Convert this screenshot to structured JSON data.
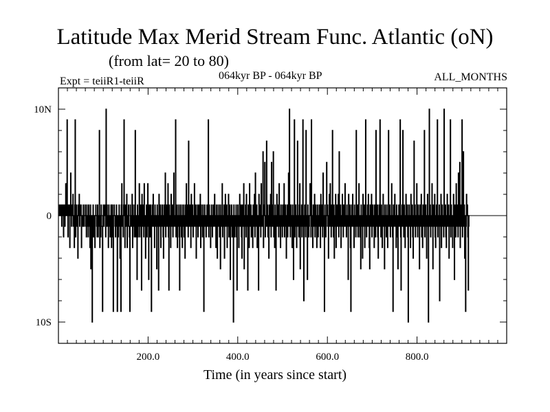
{
  "chart_data": {
    "type": "line",
    "title": "Latitude Max Merid Stream Func. Atlantic (oN)",
    "subtitle": "(from lat= 20 to 80)",
    "experiment": "Expt = teiiR1-teiiR",
    "period": "064kyr BP - 064kyr BP",
    "months": "ALL_MONTHS",
    "xlabel": "Time (in years since start)",
    "ylabel": "",
    "xlim": [
      0,
      1000
    ],
    "ylim": [
      -12,
      12
    ],
    "x_ticks": [
      200,
      400,
      600,
      800
    ],
    "x_tick_labels": [
      "200.0",
      "400.0",
      "600.0",
      "800.0"
    ],
    "y_ticks": [
      10,
      0,
      -10
    ],
    "y_tick_labels": [
      "10N",
      "0",
      "10S"
    ],
    "grid": false,
    "series": [
      {
        "x_start": 1,
        "x_step": 1,
        "values": [
          1,
          0,
          1,
          0,
          1,
          0,
          -1,
          1,
          0,
          1,
          -2,
          1,
          0,
          -1,
          1,
          3,
          0,
          1,
          9,
          0,
          -2,
          1,
          0,
          1,
          -3,
          1,
          4,
          0,
          -1,
          1,
          0,
          2,
          -1,
          0,
          -3,
          1,
          9,
          -2,
          0,
          1,
          -1,
          0,
          -4,
          1,
          0,
          2,
          -1,
          1,
          0,
          1,
          -3,
          -1,
          0,
          -1,
          1,
          0,
          -1,
          0,
          1,
          0,
          -1,
          -2,
          1,
          0,
          -1,
          -2,
          1,
          0,
          -1,
          -3,
          1,
          -5,
          -2,
          0,
          -10,
          -1,
          1,
          -2,
          0,
          -1,
          -3,
          0,
          1,
          0,
          -1,
          -2,
          1,
          -2,
          0,
          -1,
          8,
          -3,
          0,
          -2,
          1,
          -1,
          -1,
          -9,
          0,
          1,
          -1,
          0,
          1,
          0,
          -2,
          10,
          -1,
          1,
          -1,
          0,
          -3,
          1,
          0,
          -1,
          -2,
          0,
          1,
          -3,
          0,
          1,
          -2,
          -9,
          0,
          1,
          0,
          -1,
          -2,
          0,
          1,
          -1,
          -9,
          0,
          -2,
          -1,
          1,
          -1,
          -4,
          0,
          -9,
          1,
          3,
          -1,
          0,
          -2,
          1,
          9,
          0,
          -3,
          1,
          -1,
          0,
          2,
          -3,
          -1,
          0,
          1,
          -1,
          -2,
          -9,
          1,
          0,
          -1,
          0,
          2,
          -3,
          1,
          -1,
          0,
          -2,
          1,
          8,
          -2,
          0,
          -1,
          -6,
          1,
          -2,
          0,
          -1,
          3,
          -2,
          0,
          1,
          -1,
          -7,
          2,
          0,
          -1,
          1,
          -2,
          3,
          0,
          -1,
          -4,
          0,
          1,
          -2,
          0,
          3,
          -1,
          -6,
          1,
          0,
          -2,
          1,
          -1,
          -9,
          0,
          1,
          -1,
          2,
          0,
          -1,
          -3,
          1,
          0,
          -1,
          0,
          -5,
          1,
          -1,
          0,
          -7,
          2,
          -1,
          0,
          1,
          -3,
          0,
          -1,
          1,
          0,
          -2,
          -4,
          1,
          0,
          -1,
          4,
          -2,
          0,
          1,
          -1,
          0,
          3,
          -2,
          -7,
          1,
          -1,
          0,
          -3,
          2,
          0,
          -1,
          1,
          -2,
          0,
          4,
          -1,
          0,
          -1,
          9,
          -2,
          1,
          0,
          -3,
          -1,
          1,
          0,
          -2,
          -7,
          1,
          0,
          -1,
          -2,
          1,
          -3,
          0,
          -1,
          1,
          -2,
          0,
          -4,
          1,
          -1,
          3,
          0,
          -1,
          1,
          -2,
          7,
          0,
          -1,
          1,
          0,
          -3,
          2,
          -1,
          0,
          1,
          -2,
          -1,
          0,
          3,
          -1,
          0,
          1,
          -4,
          0,
          -1,
          1,
          -2,
          0,
          1,
          -1,
          0,
          2,
          -3,
          1,
          -1,
          0,
          -2,
          1,
          0,
          -9,
          -1,
          1,
          0,
          -1,
          -2,
          0,
          1,
          -1,
          0,
          9,
          -2,
          1,
          0,
          -1,
          -3,
          0,
          1,
          -1,
          -2,
          0,
          1,
          -1,
          0,
          2,
          -1,
          0,
          -3,
          1,
          -1,
          -4,
          0,
          1,
          -1,
          0,
          -2,
          1,
          -5,
          0,
          -1,
          1,
          3,
          -2,
          0,
          -1,
          1,
          -4,
          0,
          2,
          -1,
          0,
          1,
          -3,
          0,
          -1,
          2,
          -2,
          0,
          1,
          -6,
          0,
          -1,
          1,
          -2,
          0,
          -1,
          -10,
          1,
          0,
          -2,
          -1,
          0,
          1,
          -2,
          -7,
          0,
          1,
          -1,
          -3,
          0,
          2,
          -1,
          0,
          1,
          -2,
          -4,
          1,
          0,
          -1,
          3,
          -5,
          0,
          -1,
          1,
          -2,
          2,
          0,
          -1,
          -7,
          1,
          0,
          -3,
          3,
          -1,
          0,
          1,
          -2,
          -1,
          0,
          -3,
          1,
          -1,
          0,
          2,
          -2,
          4,
          0,
          -1,
          1,
          -3,
          0,
          -1,
          -7,
          2,
          -1,
          0,
          1,
          -2,
          3,
          -1,
          0,
          -1,
          6,
          -3,
          1,
          0,
          5,
          -2,
          -1,
          0,
          7,
          -1,
          1,
          -2,
          0,
          -4,
          1,
          0,
          -1,
          2,
          -2,
          5,
          0,
          -1,
          1,
          6,
          -2,
          0,
          -3,
          1,
          -1,
          -7,
          0,
          2,
          -1,
          1,
          0,
          -2,
          3,
          -1,
          0,
          -3,
          1,
          0,
          -1,
          -2,
          1,
          0,
          -1,
          3,
          -2,
          0,
          1,
          -1,
          -4,
          0,
          1,
          -2,
          0,
          4,
          -1,
          10,
          0,
          -2,
          1,
          -1,
          0,
          -3,
          1,
          0,
          -6,
          -1,
          9,
          -2,
          0,
          1,
          -1,
          -3,
          0,
          7,
          -1,
          0,
          -2,
          1,
          3,
          -5,
          0,
          -1,
          1,
          -2,
          0,
          9,
          -1,
          -8,
          0,
          1,
          -1,
          -2,
          8,
          0,
          -1,
          -6,
          1,
          0,
          -2,
          -1,
          0,
          3,
          1,
          -2,
          9,
          -1,
          0,
          -3,
          1,
          -1,
          0,
          2,
          -2,
          0,
          1,
          -1,
          -3,
          0,
          1,
          -2,
          0,
          -1,
          1,
          0,
          -3,
          2,
          -1,
          0,
          1,
          -2,
          4,
          0,
          -1,
          -9,
          1,
          0,
          -2,
          -1,
          5,
          0,
          1,
          -1,
          -4,
          0,
          2,
          -1,
          3,
          0,
          -2,
          1,
          -1,
          8,
          0,
          -2,
          1,
          -4,
          0,
          -1,
          2,
          -3,
          0,
          1,
          -1,
          0,
          2,
          -2,
          6,
          0,
          -1,
          1,
          -3,
          0,
          -1,
          2,
          0,
          -2,
          1,
          -1,
          0,
          3,
          -1,
          0,
          -2,
          1,
          -1,
          0,
          -6,
          2,
          -1,
          0,
          1,
          -3,
          -9,
          0,
          1,
          -1,
          2,
          -1,
          0,
          -3,
          1,
          -1,
          0,
          -2,
          8,
          0,
          -1,
          1,
          -2,
          0,
          3,
          -1,
          -2,
          0,
          -5,
          1,
          -1,
          0,
          -4,
          2,
          0,
          -1,
          1,
          -3,
          0,
          9,
          -1,
          -2,
          0,
          1,
          -1,
          2,
          0,
          -3,
          -5,
          1,
          -1,
          0,
          2,
          -2,
          0,
          1,
          -1,
          0,
          -3,
          1,
          0,
          -2,
          8,
          -1,
          0,
          1,
          -2,
          -4,
          0,
          1,
          -1,
          9,
          0,
          -2,
          1,
          -1,
          -3,
          0,
          2,
          -1,
          0,
          -5,
          1,
          -1,
          0,
          -2,
          1,
          0,
          -3,
          -1,
          8,
          0,
          -1,
          1,
          -2,
          0,
          -1,
          3,
          0,
          -2,
          -9,
          1,
          0,
          -1,
          2,
          0,
          -1,
          -3,
          1,
          0,
          -2,
          -5,
          0,
          1,
          -1,
          0,
          9,
          -2,
          -7,
          0,
          1,
          -1,
          8,
          0,
          -2,
          1,
          -1,
          -3,
          0,
          2,
          -1,
          0,
          1,
          -2,
          -10,
          0,
          1,
          -1,
          0,
          -3,
          2,
          -1,
          0,
          1,
          -2,
          -4,
          0,
          7,
          -1,
          1,
          -2,
          0,
          -1,
          3,
          0,
          -2,
          1,
          -1,
          0,
          -5,
          1,
          -1,
          0,
          2,
          -2,
          0,
          -3,
          1,
          -1,
          0,
          8,
          -2,
          0,
          1,
          -1,
          -4,
          0,
          2,
          -1,
          -10,
          0,
          10,
          -1,
          1,
          -2,
          0,
          -1,
          3,
          0,
          -5,
          1,
          -1,
          0,
          2,
          -2,
          -3,
          0,
          1,
          -1,
          9,
          -2,
          0,
          -1,
          1,
          -8,
          0,
          -1,
          2,
          -3,
          0,
          1,
          -1,
          0,
          -2,
          10,
          -1,
          0,
          1,
          -2,
          -3,
          0,
          2,
          -1,
          0,
          1,
          -4,
          -1,
          0,
          9,
          -2,
          1,
          0,
          -1,
          -3,
          0,
          2,
          -1,
          -6,
          1,
          0,
          -2,
          3,
          -1,
          0,
          1,
          -2,
          4,
          -1,
          0,
          5,
          -3,
          1,
          0,
          -1,
          9,
          -2,
          0,
          6,
          -1,
          1,
          -4,
          0,
          -9,
          -1,
          2,
          0,
          1,
          -2,
          -7,
          0,
          -1
        ]
      }
    ]
  }
}
